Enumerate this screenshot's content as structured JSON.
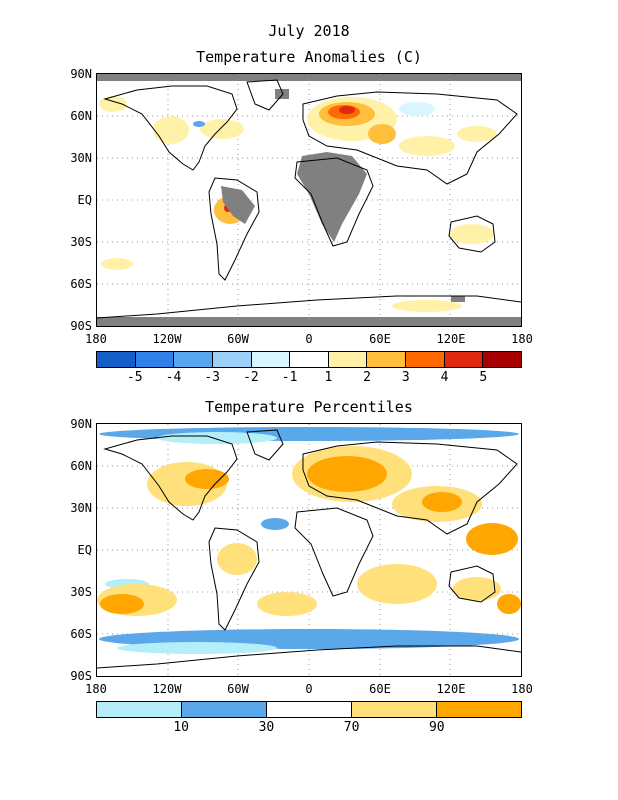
{
  "header": {
    "title_line1": "July 2018",
    "title_line2": "Temperature Anomalies (C)"
  },
  "percentile_panel": {
    "title": "Temperature Percentiles"
  },
  "axes": {
    "lat_labels": [
      "90N",
      "60N",
      "30N",
      "EQ",
      "30S",
      "60S",
      "90S"
    ],
    "lon_labels": [
      "180",
      "120W",
      "60W",
      "0",
      "60E",
      "120E",
      "180"
    ]
  },
  "anomaly_colorbar": {
    "colors": [
      "#1560c8",
      "#2f80e8",
      "#58a6f0",
      "#9cd0f8",
      "#d8f6ff",
      "#ffffff",
      "#fff2a8",
      "#ffbe3c",
      "#ff6a00",
      "#e02810",
      "#a80000"
    ],
    "tick_labels": [
      "-5",
      "-4",
      "-3",
      "-2",
      "-1",
      "1",
      "2",
      "3",
      "4",
      "5"
    ]
  },
  "percentile_colorbar": {
    "colors": [
      "#b4eef8",
      "#5aa8ea",
      "#ffffff",
      "#ffe07a",
      "#ffa600"
    ],
    "tick_labels": [
      "10",
      "30",
      "70",
      "90"
    ]
  },
  "map_colors": {
    "missing": "#808080",
    "warm_light": "#fff2a8",
    "warm": "#ffbe3c",
    "hot": "#ff6a00",
    "very_hot": "#e02810",
    "cool_light": "#d8f6ff",
    "cool": "#58a6f0",
    "pct_warm_light": "#ffe07a",
    "pct_warm": "#ffa600",
    "pct_cool": "#5aa8ea",
    "pct_cool_light": "#b4eef8"
  }
}
